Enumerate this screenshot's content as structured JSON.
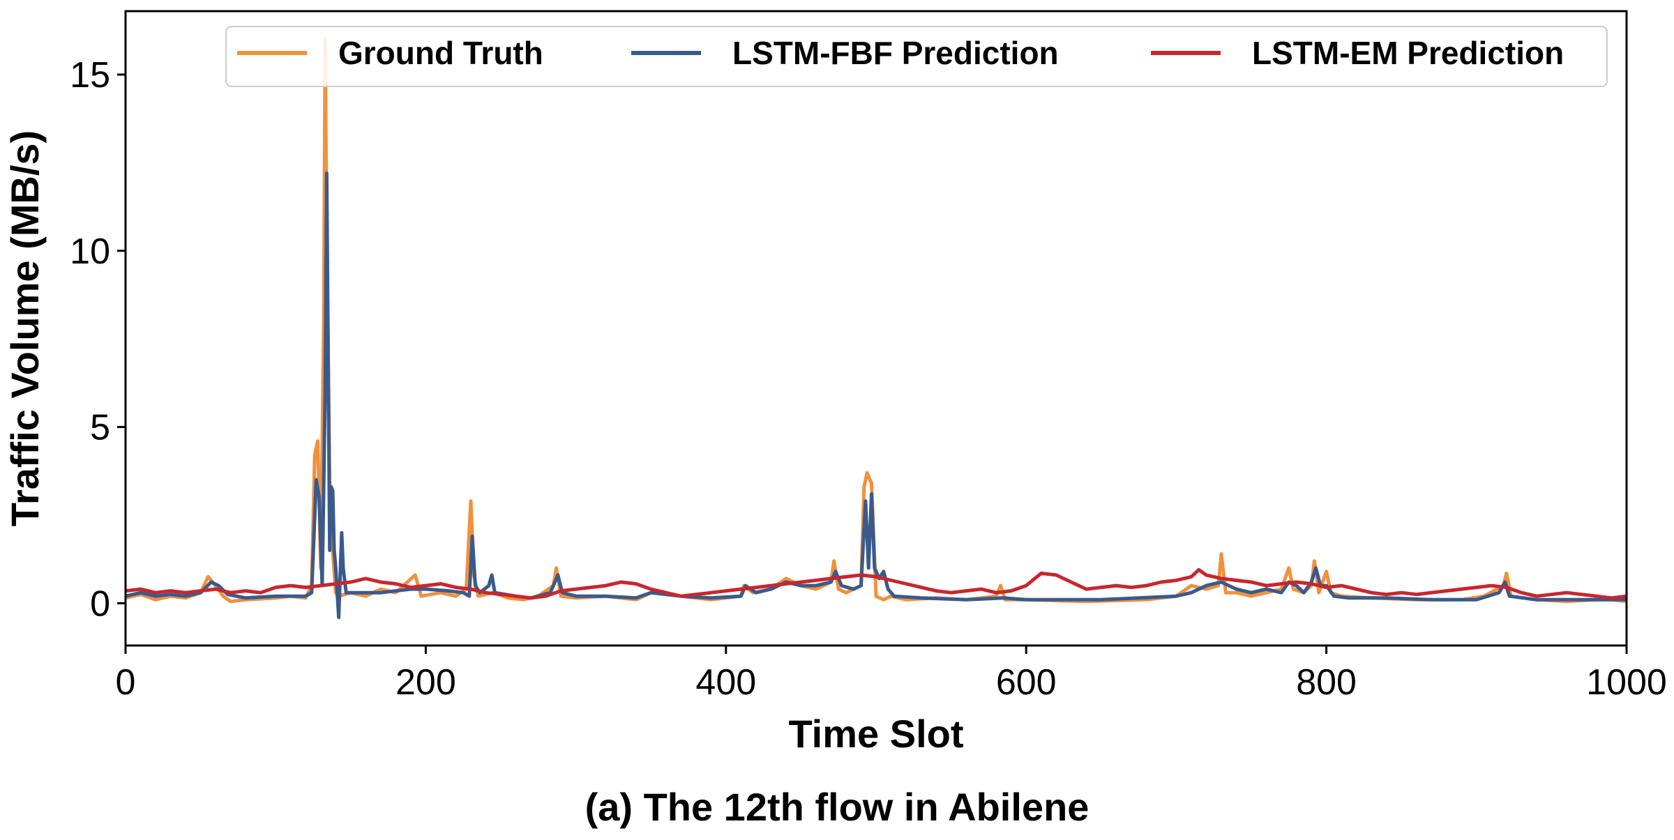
{
  "chart_data": {
    "type": "line",
    "title": "",
    "caption": "(a) The 12th flow in Abilene",
    "xlabel": "Time Slot",
    "ylabel": "Traffic Volume (MB/s)",
    "xlim": [
      0,
      1000
    ],
    "ylim": [
      -1.2,
      16.8
    ],
    "xticks": [
      0,
      200,
      400,
      600,
      800,
      1000
    ],
    "yticks": [
      0,
      5,
      10,
      15
    ],
    "grid": false,
    "legend_position": "top-right",
    "series": [
      {
        "name": "Ground Truth",
        "color": "#f0913d",
        "points": [
          [
            0,
            0.15
          ],
          [
            10,
            0.25
          ],
          [
            20,
            0.1
          ],
          [
            30,
            0.2
          ],
          [
            40,
            0.15
          ],
          [
            50,
            0.3
          ],
          [
            55,
            0.75
          ],
          [
            60,
            0.5
          ],
          [
            65,
            0.2
          ],
          [
            70,
            0.05
          ],
          [
            80,
            0.1
          ],
          [
            100,
            0.15
          ],
          [
            110,
            0.2
          ],
          [
            120,
            0.15
          ],
          [
            124,
            0.5
          ],
          [
            126,
            4.2
          ],
          [
            128,
            4.6
          ],
          [
            130,
            1.0
          ],
          [
            132,
            8.0
          ],
          [
            133,
            16.0
          ],
          [
            134,
            10.5
          ],
          [
            136,
            3.5
          ],
          [
            138,
            1.5
          ],
          [
            140,
            0.3
          ],
          [
            142,
            0.2
          ],
          [
            150,
            0.3
          ],
          [
            160,
            0.2
          ],
          [
            170,
            0.4
          ],
          [
            180,
            0.3
          ],
          [
            193,
            0.8
          ],
          [
            197,
            0.2
          ],
          [
            210,
            0.3
          ],
          [
            220,
            0.2
          ],
          [
            227,
            0.4
          ],
          [
            230,
            2.9
          ],
          [
            232,
            0.8
          ],
          [
            235,
            0.2
          ],
          [
            245,
            0.3
          ],
          [
            255,
            0.15
          ],
          [
            265,
            0.1
          ],
          [
            275,
            0.2
          ],
          [
            285,
            0.5
          ],
          [
            287,
            1.0
          ],
          [
            290,
            0.2
          ],
          [
            300,
            0.15
          ],
          [
            320,
            0.2
          ],
          [
            340,
            0.1
          ],
          [
            350,
            0.3
          ],
          [
            370,
            0.2
          ],
          [
            390,
            0.1
          ],
          [
            410,
            0.2
          ],
          [
            412,
            0.5
          ],
          [
            418,
            0.3
          ],
          [
            430,
            0.4
          ],
          [
            440,
            0.7
          ],
          [
            450,
            0.5
          ],
          [
            460,
            0.4
          ],
          [
            470,
            0.6
          ],
          [
            472,
            1.2
          ],
          [
            475,
            0.4
          ],
          [
            480,
            0.3
          ],
          [
            490,
            0.5
          ],
          [
            492,
            3.3
          ],
          [
            494,
            3.7
          ],
          [
            497,
            3.4
          ],
          [
            500,
            0.2
          ],
          [
            505,
            0.1
          ],
          [
            510,
            0.2
          ],
          [
            520,
            0.1
          ],
          [
            540,
            0.15
          ],
          [
            560,
            0.1
          ],
          [
            580,
            0.2
          ],
          [
            583,
            0.5
          ],
          [
            586,
            0.1
          ],
          [
            600,
            0.1
          ],
          [
            640,
            0.05
          ],
          [
            680,
            0.1
          ],
          [
            700,
            0.2
          ],
          [
            710,
            0.5
          ],
          [
            720,
            0.4
          ],
          [
            728,
            0.5
          ],
          [
            730,
            1.4
          ],
          [
            733,
            0.3
          ],
          [
            740,
            0.3
          ],
          [
            750,
            0.2
          ],
          [
            760,
            0.3
          ],
          [
            770,
            0.4
          ],
          [
            775,
            1.0
          ],
          [
            778,
            0.4
          ],
          [
            785,
            0.3
          ],
          [
            790,
            0.5
          ],
          [
            792,
            1.2
          ],
          [
            795,
            0.3
          ],
          [
            800,
            0.9
          ],
          [
            803,
            0.3
          ],
          [
            810,
            0.2
          ],
          [
            830,
            0.15
          ],
          [
            860,
            0.1
          ],
          [
            890,
            0.1
          ],
          [
            905,
            0.2
          ],
          [
            918,
            0.5
          ],
          [
            920,
            0.85
          ],
          [
            923,
            0.2
          ],
          [
            940,
            0.1
          ],
          [
            960,
            0.05
          ],
          [
            980,
            0.1
          ],
          [
            990,
            0.1
          ],
          [
            1000,
            0.05
          ]
        ]
      },
      {
        "name": "LSTM-FBF Prediction",
        "color": "#3a5a8c",
        "points": [
          [
            0,
            0.2
          ],
          [
            10,
            0.3
          ],
          [
            20,
            0.2
          ],
          [
            30,
            0.25
          ],
          [
            40,
            0.2
          ],
          [
            50,
            0.3
          ],
          [
            57,
            0.6
          ],
          [
            62,
            0.5
          ],
          [
            68,
            0.25
          ],
          [
            80,
            0.15
          ],
          [
            100,
            0.2
          ],
          [
            120,
            0.2
          ],
          [
            124,
            0.3
          ],
          [
            127,
            3.5
          ],
          [
            129,
            3.0
          ],
          [
            131,
            0.5
          ],
          [
            133,
            6.0
          ],
          [
            134,
            12.2
          ],
          [
            135,
            7.0
          ],
          [
            136,
            1.5
          ],
          [
            137,
            3.3
          ],
          [
            138,
            3.2
          ],
          [
            139,
            1.5
          ],
          [
            140,
            1.0
          ],
          [
            142,
            -0.4
          ],
          [
            144,
            2.0
          ],
          [
            145,
            1.0
          ],
          [
            147,
            0.3
          ],
          [
            155,
            0.3
          ],
          [
            170,
            0.3
          ],
          [
            190,
            0.4
          ],
          [
            200,
            0.4
          ],
          [
            215,
            0.35
          ],
          [
            225,
            0.3
          ],
          [
            229,
            0.2
          ],
          [
            231,
            1.9
          ],
          [
            233,
            0.5
          ],
          [
            236,
            0.3
          ],
          [
            242,
            0.5
          ],
          [
            244,
            0.8
          ],
          [
            246,
            0.3
          ],
          [
            260,
            0.2
          ],
          [
            270,
            0.15
          ],
          [
            283,
            0.3
          ],
          [
            286,
            0.6
          ],
          [
            288,
            0.8
          ],
          [
            291,
            0.3
          ],
          [
            300,
            0.2
          ],
          [
            320,
            0.2
          ],
          [
            340,
            0.15
          ],
          [
            350,
            0.3
          ],
          [
            370,
            0.2
          ],
          [
            390,
            0.15
          ],
          [
            410,
            0.2
          ],
          [
            413,
            0.5
          ],
          [
            420,
            0.3
          ],
          [
            430,
            0.4
          ],
          [
            440,
            0.6
          ],
          [
            450,
            0.5
          ],
          [
            460,
            0.5
          ],
          [
            470,
            0.6
          ],
          [
            473,
            0.9
          ],
          [
            477,
            0.5
          ],
          [
            485,
            0.4
          ],
          [
            490,
            0.5
          ],
          [
            493,
            2.9
          ],
          [
            495,
            1.0
          ],
          [
            497,
            3.1
          ],
          [
            499,
            1.0
          ],
          [
            502,
            0.7
          ],
          [
            505,
            0.9
          ],
          [
            508,
            0.4
          ],
          [
            512,
            0.2
          ],
          [
            530,
            0.15
          ],
          [
            560,
            0.1
          ],
          [
            585,
            0.15
          ],
          [
            600,
            0.1
          ],
          [
            650,
            0.1
          ],
          [
            700,
            0.2
          ],
          [
            710,
            0.3
          ],
          [
            720,
            0.5
          ],
          [
            730,
            0.6
          ],
          [
            740,
            0.4
          ],
          [
            750,
            0.3
          ],
          [
            760,
            0.4
          ],
          [
            770,
            0.3
          ],
          [
            775,
            0.6
          ],
          [
            780,
            0.5
          ],
          [
            785,
            0.3
          ],
          [
            790,
            0.6
          ],
          [
            793,
            1.0
          ],
          [
            796,
            0.5
          ],
          [
            800,
            0.5
          ],
          [
            805,
            0.2
          ],
          [
            815,
            0.15
          ],
          [
            840,
            0.15
          ],
          [
            870,
            0.1
          ],
          [
            900,
            0.1
          ],
          [
            915,
            0.3
          ],
          [
            919,
            0.6
          ],
          [
            922,
            0.2
          ],
          [
            940,
            0.1
          ],
          [
            970,
            0.1
          ],
          [
            990,
            0.1
          ],
          [
            1000,
            0.1
          ]
        ]
      },
      {
        "name": "LSTM-EM Prediction",
        "color": "#c7272e",
        "points": [
          [
            0,
            0.35
          ],
          [
            10,
            0.4
          ],
          [
            20,
            0.3
          ],
          [
            30,
            0.35
          ],
          [
            40,
            0.3
          ],
          [
            50,
            0.35
          ],
          [
            60,
            0.4
          ],
          [
            70,
            0.3
          ],
          [
            80,
            0.35
          ],
          [
            90,
            0.3
          ],
          [
            100,
            0.45
          ],
          [
            110,
            0.5
          ],
          [
            120,
            0.45
          ],
          [
            130,
            0.5
          ],
          [
            140,
            0.55
          ],
          [
            150,
            0.6
          ],
          [
            160,
            0.7
          ],
          [
            170,
            0.6
          ],
          [
            180,
            0.55
          ],
          [
            190,
            0.45
          ],
          [
            200,
            0.5
          ],
          [
            210,
            0.55
          ],
          [
            220,
            0.45
          ],
          [
            230,
            0.4
          ],
          [
            240,
            0.3
          ],
          [
            250,
            0.25
          ],
          [
            260,
            0.2
          ],
          [
            270,
            0.15
          ],
          [
            280,
            0.2
          ],
          [
            290,
            0.35
          ],
          [
            300,
            0.4
          ],
          [
            320,
            0.5
          ],
          [
            330,
            0.6
          ],
          [
            340,
            0.55
          ],
          [
            350,
            0.4
          ],
          [
            360,
            0.3
          ],
          [
            370,
            0.2
          ],
          [
            380,
            0.25
          ],
          [
            390,
            0.3
          ],
          [
            400,
            0.35
          ],
          [
            410,
            0.4
          ],
          [
            420,
            0.45
          ],
          [
            430,
            0.5
          ],
          [
            440,
            0.55
          ],
          [
            450,
            0.6
          ],
          [
            460,
            0.65
          ],
          [
            470,
            0.7
          ],
          [
            480,
            0.75
          ],
          [
            490,
            0.8
          ],
          [
            500,
            0.75
          ],
          [
            510,
            0.65
          ],
          [
            520,
            0.55
          ],
          [
            530,
            0.45
          ],
          [
            540,
            0.35
          ],
          [
            550,
            0.3
          ],
          [
            560,
            0.35
          ],
          [
            570,
            0.4
          ],
          [
            580,
            0.3
          ],
          [
            590,
            0.35
          ],
          [
            600,
            0.5
          ],
          [
            610,
            0.85
          ],
          [
            620,
            0.8
          ],
          [
            630,
            0.6
          ],
          [
            640,
            0.4
          ],
          [
            650,
            0.45
          ],
          [
            660,
            0.5
          ],
          [
            670,
            0.45
          ],
          [
            680,
            0.5
          ],
          [
            690,
            0.6
          ],
          [
            700,
            0.65
          ],
          [
            710,
            0.75
          ],
          [
            715,
            0.95
          ],
          [
            720,
            0.8
          ],
          [
            730,
            0.7
          ],
          [
            740,
            0.65
          ],
          [
            750,
            0.6
          ],
          [
            760,
            0.5
          ],
          [
            770,
            0.55
          ],
          [
            780,
            0.6
          ],
          [
            790,
            0.55
          ],
          [
            800,
            0.45
          ],
          [
            810,
            0.5
          ],
          [
            820,
            0.4
          ],
          [
            830,
            0.3
          ],
          [
            840,
            0.25
          ],
          [
            850,
            0.3
          ],
          [
            860,
            0.25
          ],
          [
            870,
            0.3
          ],
          [
            880,
            0.35
          ],
          [
            890,
            0.4
          ],
          [
            900,
            0.45
          ],
          [
            910,
            0.5
          ],
          [
            920,
            0.45
          ],
          [
            930,
            0.3
          ],
          [
            940,
            0.2
          ],
          [
            950,
            0.25
          ],
          [
            960,
            0.3
          ],
          [
            970,
            0.25
          ],
          [
            980,
            0.2
          ],
          [
            990,
            0.15
          ],
          [
            1000,
            0.2
          ]
        ]
      }
    ]
  }
}
